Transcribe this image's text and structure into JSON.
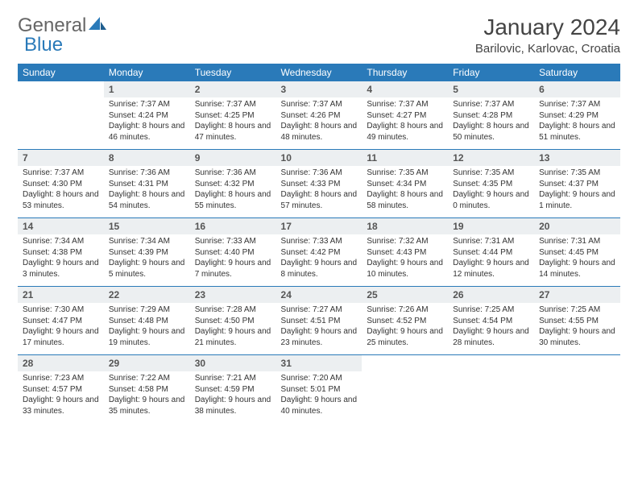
{
  "logo": {
    "part1": "General",
    "part2": "Blue"
  },
  "title": "January 2024",
  "location": "Barilovic, Karlovac, Croatia",
  "colors": {
    "header_bg": "#2a7ab9",
    "header_text": "#ffffff",
    "daynum_bg": "#eceff1",
    "rule": "#2a7ab9",
    "body_bg": "#ffffff",
    "text": "#333333"
  },
  "dow": [
    "Sunday",
    "Monday",
    "Tuesday",
    "Wednesday",
    "Thursday",
    "Friday",
    "Saturday"
  ],
  "weeks": [
    {
      "nums": [
        "",
        "1",
        "2",
        "3",
        "4",
        "5",
        "6"
      ],
      "cells": [
        null,
        {
          "sunrise": "Sunrise: 7:37 AM",
          "sunset": "Sunset: 4:24 PM",
          "day": "Daylight: 8 hours and 46 minutes."
        },
        {
          "sunrise": "Sunrise: 7:37 AM",
          "sunset": "Sunset: 4:25 PM",
          "day": "Daylight: 8 hours and 47 minutes."
        },
        {
          "sunrise": "Sunrise: 7:37 AM",
          "sunset": "Sunset: 4:26 PM",
          "day": "Daylight: 8 hours and 48 minutes."
        },
        {
          "sunrise": "Sunrise: 7:37 AM",
          "sunset": "Sunset: 4:27 PM",
          "day": "Daylight: 8 hours and 49 minutes."
        },
        {
          "sunrise": "Sunrise: 7:37 AM",
          "sunset": "Sunset: 4:28 PM",
          "day": "Daylight: 8 hours and 50 minutes."
        },
        {
          "sunrise": "Sunrise: 7:37 AM",
          "sunset": "Sunset: 4:29 PM",
          "day": "Daylight: 8 hours and 51 minutes."
        }
      ]
    },
    {
      "nums": [
        "7",
        "8",
        "9",
        "10",
        "11",
        "12",
        "13"
      ],
      "cells": [
        {
          "sunrise": "Sunrise: 7:37 AM",
          "sunset": "Sunset: 4:30 PM",
          "day": "Daylight: 8 hours and 53 minutes."
        },
        {
          "sunrise": "Sunrise: 7:36 AM",
          "sunset": "Sunset: 4:31 PM",
          "day": "Daylight: 8 hours and 54 minutes."
        },
        {
          "sunrise": "Sunrise: 7:36 AM",
          "sunset": "Sunset: 4:32 PM",
          "day": "Daylight: 8 hours and 55 minutes."
        },
        {
          "sunrise": "Sunrise: 7:36 AM",
          "sunset": "Sunset: 4:33 PM",
          "day": "Daylight: 8 hours and 57 minutes."
        },
        {
          "sunrise": "Sunrise: 7:35 AM",
          "sunset": "Sunset: 4:34 PM",
          "day": "Daylight: 8 hours and 58 minutes."
        },
        {
          "sunrise": "Sunrise: 7:35 AM",
          "sunset": "Sunset: 4:35 PM",
          "day": "Daylight: 9 hours and 0 minutes."
        },
        {
          "sunrise": "Sunrise: 7:35 AM",
          "sunset": "Sunset: 4:37 PM",
          "day": "Daylight: 9 hours and 1 minute."
        }
      ]
    },
    {
      "nums": [
        "14",
        "15",
        "16",
        "17",
        "18",
        "19",
        "20"
      ],
      "cells": [
        {
          "sunrise": "Sunrise: 7:34 AM",
          "sunset": "Sunset: 4:38 PM",
          "day": "Daylight: 9 hours and 3 minutes."
        },
        {
          "sunrise": "Sunrise: 7:34 AM",
          "sunset": "Sunset: 4:39 PM",
          "day": "Daylight: 9 hours and 5 minutes."
        },
        {
          "sunrise": "Sunrise: 7:33 AM",
          "sunset": "Sunset: 4:40 PM",
          "day": "Daylight: 9 hours and 7 minutes."
        },
        {
          "sunrise": "Sunrise: 7:33 AM",
          "sunset": "Sunset: 4:42 PM",
          "day": "Daylight: 9 hours and 8 minutes."
        },
        {
          "sunrise": "Sunrise: 7:32 AM",
          "sunset": "Sunset: 4:43 PM",
          "day": "Daylight: 9 hours and 10 minutes."
        },
        {
          "sunrise": "Sunrise: 7:31 AM",
          "sunset": "Sunset: 4:44 PM",
          "day": "Daylight: 9 hours and 12 minutes."
        },
        {
          "sunrise": "Sunrise: 7:31 AM",
          "sunset": "Sunset: 4:45 PM",
          "day": "Daylight: 9 hours and 14 minutes."
        }
      ]
    },
    {
      "nums": [
        "21",
        "22",
        "23",
        "24",
        "25",
        "26",
        "27"
      ],
      "cells": [
        {
          "sunrise": "Sunrise: 7:30 AM",
          "sunset": "Sunset: 4:47 PM",
          "day": "Daylight: 9 hours and 17 minutes."
        },
        {
          "sunrise": "Sunrise: 7:29 AM",
          "sunset": "Sunset: 4:48 PM",
          "day": "Daylight: 9 hours and 19 minutes."
        },
        {
          "sunrise": "Sunrise: 7:28 AM",
          "sunset": "Sunset: 4:50 PM",
          "day": "Daylight: 9 hours and 21 minutes."
        },
        {
          "sunrise": "Sunrise: 7:27 AM",
          "sunset": "Sunset: 4:51 PM",
          "day": "Daylight: 9 hours and 23 minutes."
        },
        {
          "sunrise": "Sunrise: 7:26 AM",
          "sunset": "Sunset: 4:52 PM",
          "day": "Daylight: 9 hours and 25 minutes."
        },
        {
          "sunrise": "Sunrise: 7:25 AM",
          "sunset": "Sunset: 4:54 PM",
          "day": "Daylight: 9 hours and 28 minutes."
        },
        {
          "sunrise": "Sunrise: 7:25 AM",
          "sunset": "Sunset: 4:55 PM",
          "day": "Daylight: 9 hours and 30 minutes."
        }
      ]
    },
    {
      "nums": [
        "28",
        "29",
        "30",
        "31",
        "",
        "",
        ""
      ],
      "cells": [
        {
          "sunrise": "Sunrise: 7:23 AM",
          "sunset": "Sunset: 4:57 PM",
          "day": "Daylight: 9 hours and 33 minutes."
        },
        {
          "sunrise": "Sunrise: 7:22 AM",
          "sunset": "Sunset: 4:58 PM",
          "day": "Daylight: 9 hours and 35 minutes."
        },
        {
          "sunrise": "Sunrise: 7:21 AM",
          "sunset": "Sunset: 4:59 PM",
          "day": "Daylight: 9 hours and 38 minutes."
        },
        {
          "sunrise": "Sunrise: 7:20 AM",
          "sunset": "Sunset: 5:01 PM",
          "day": "Daylight: 9 hours and 40 minutes."
        },
        null,
        null,
        null
      ]
    }
  ]
}
